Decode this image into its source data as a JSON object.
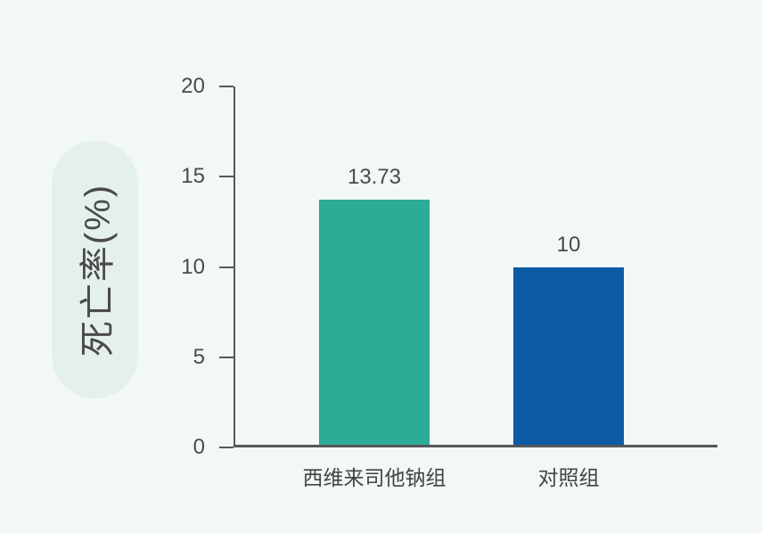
{
  "page": {
    "background": "#f2f8f6"
  },
  "chart_data": {
    "type": "bar",
    "title": "",
    "categories": [
      "西维来司他钠组",
      "对照组"
    ],
    "values": [
      13.73,
      10
    ],
    "value_labels": [
      "13.73",
      "10"
    ],
    "bar_colors": [
      "#2cab97",
      "#0e5ba5"
    ],
    "ylabel": "死亡率(%)",
    "xlabel": "",
    "ylim": [
      0,
      20
    ],
    "yticks": [
      0,
      5,
      10,
      15,
      20
    ],
    "grid": "off",
    "legend": "none",
    "axis_color": "#55585a",
    "text_color": "#4a4a4a",
    "ylabel_pill_background": "#e4f0ec"
  }
}
